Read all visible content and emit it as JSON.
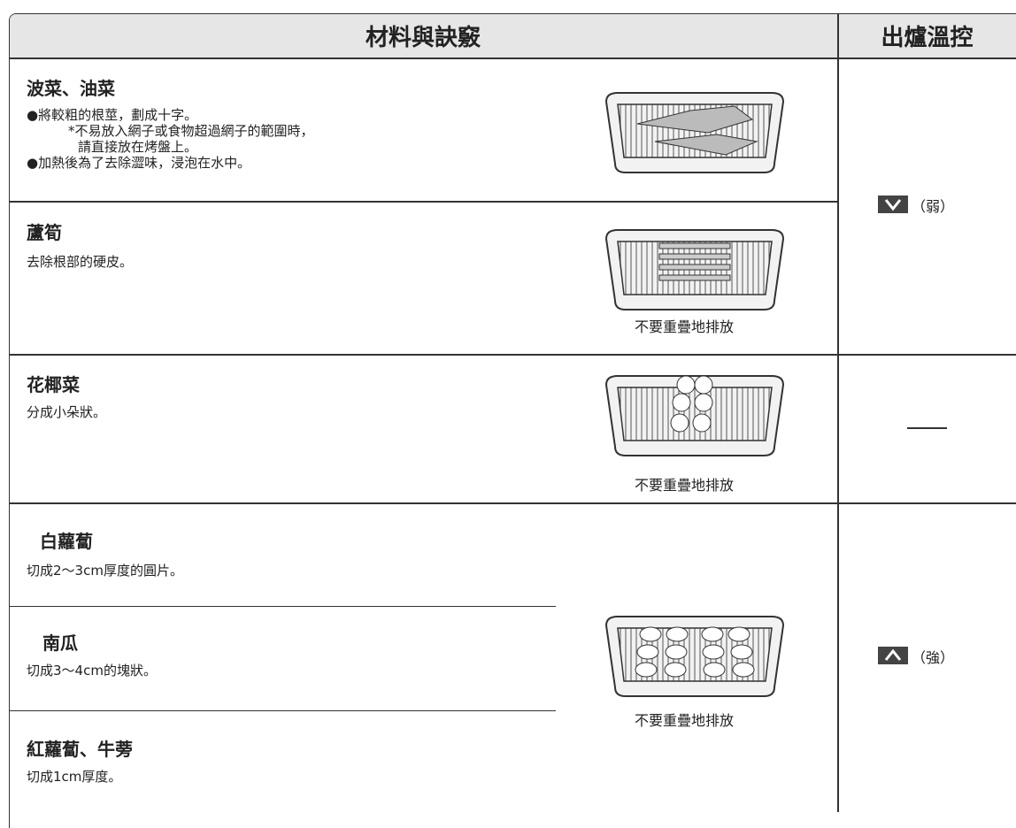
{
  "header": {
    "materials": "材料與訣竅",
    "control": "出爐溫控"
  },
  "rows": [
    {
      "items": [
        {
          "name": "波菜、油菜",
          "notes": [
            "●將較粗的根莖，劃成十字。",
            "*不易放入網子或食物超過網子的範圍時，",
            "請直接放在烤盤上。",
            "●加熱後為了去除澀味，浸泡在水中。"
          ]
        },
        {
          "name": "蘆筍",
          "notes": [
            "去除根部的硬皮。"
          ]
        }
      ],
      "caption": "不要重疊地排放",
      "control": "（弱）"
    },
    {
      "items": [
        {
          "name": "花椰菜",
          "notes": [
            "分成小朵狀。"
          ]
        }
      ],
      "caption": "不要重疊地排放"
    },
    {
      "items": [
        {
          "name": "白蘿蔔",
          "notes": [
            "切成2～3cm厚度的圓片。"
          ]
        },
        {
          "name": "南瓜",
          "notes": [
            "切成3～4cm的塊狀。"
          ]
        },
        {
          "name": "紅蘿蔔、牛蒡",
          "notes": [
            "切成1cm厚度。"
          ]
        }
      ],
      "caption": "不要重疊地排放",
      "control": "（強）"
    }
  ]
}
